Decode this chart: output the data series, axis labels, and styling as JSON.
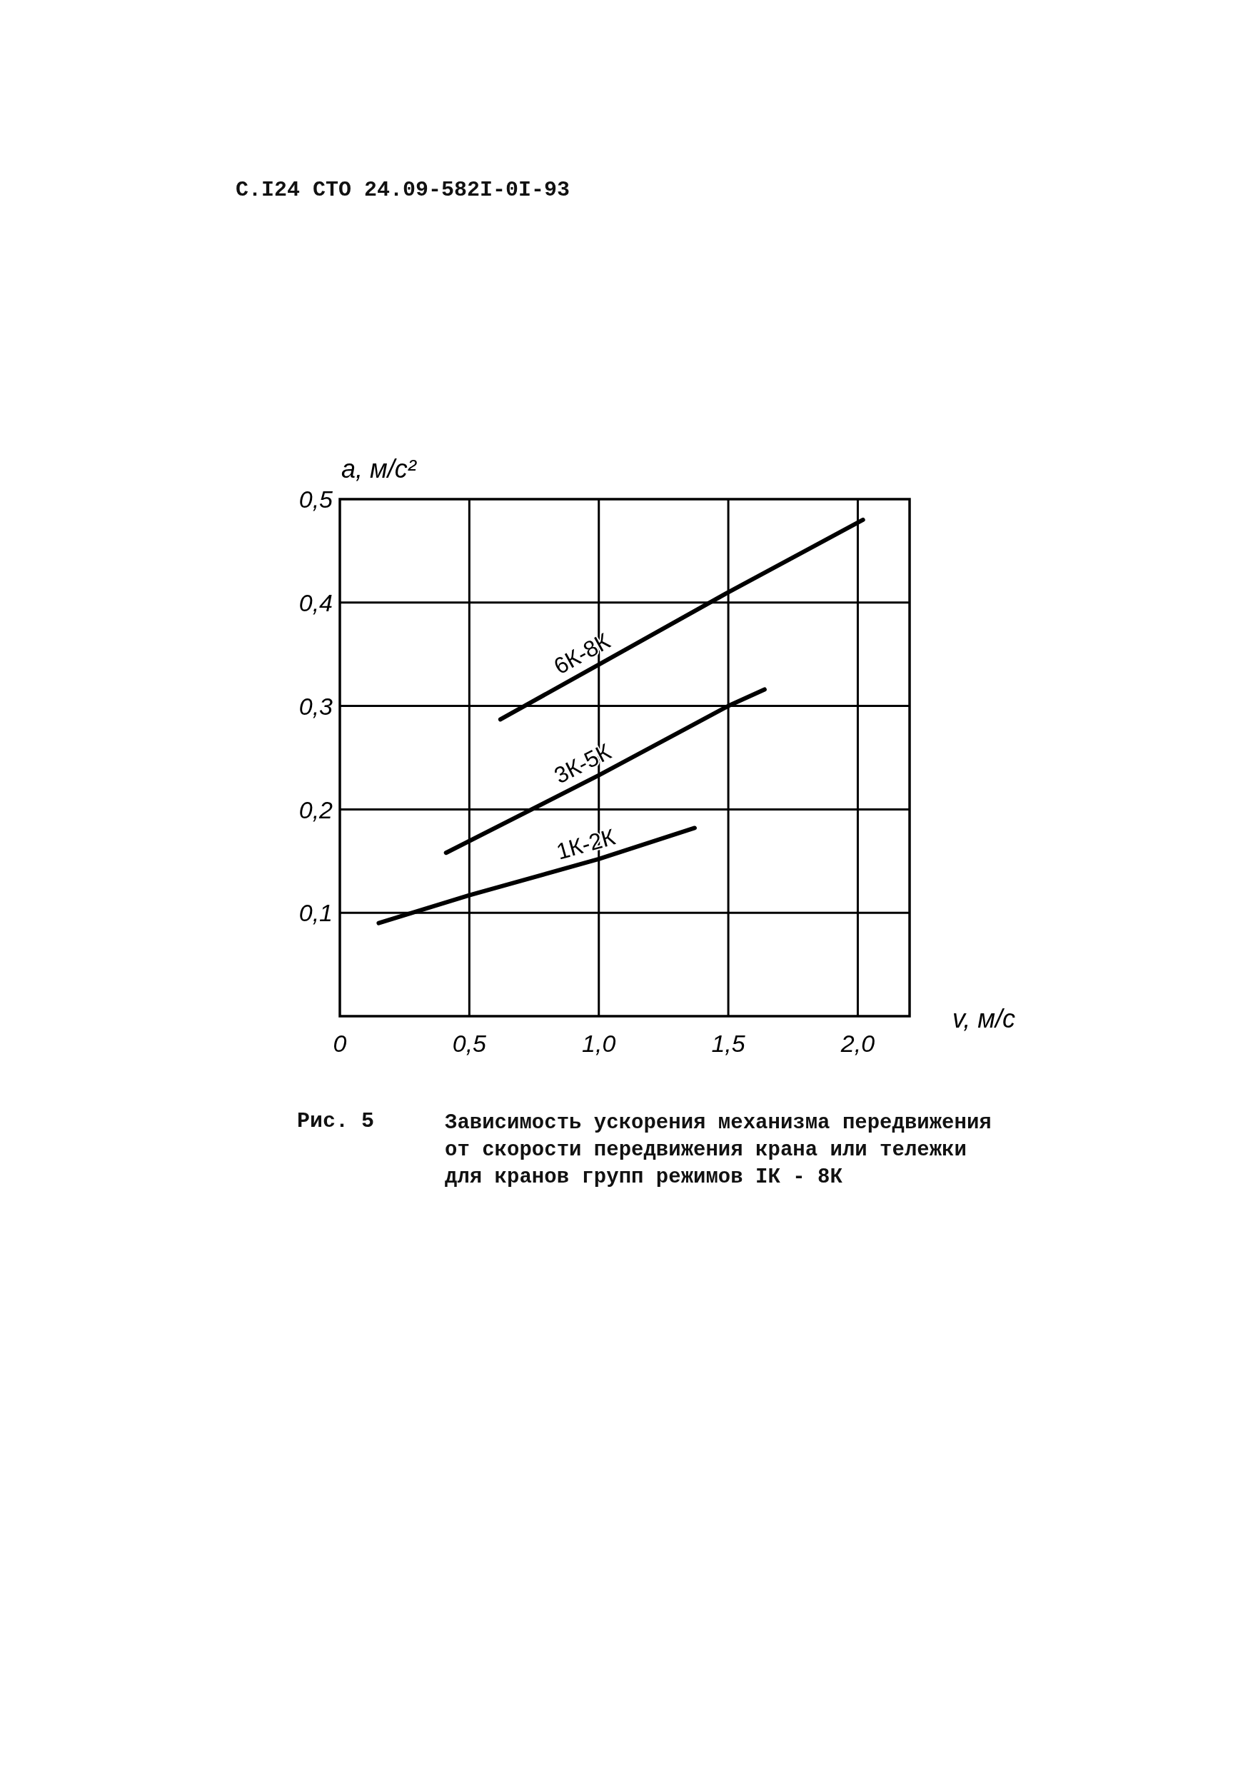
{
  "chart_data": {
    "type": "line",
    "xlabel": "v, м/с",
    "ylabel": "a, м/с²",
    "annotations": [
      "С.I24 СТО 24.09-582I-0I-93",
      "Рис. 5",
      "Зависимость ускорения механизма передвижения\nот скорости передвижения крана или тележки\nдля кранов групп режимов IК - 8К"
    ],
    "xlim": [
      0,
      2.2
    ],
    "ylim": [
      0,
      0.5
    ],
    "xticks": [
      0,
      {
        "value": 0.5,
        "label": "0,5"
      },
      {
        "value": 1,
        "label": "1,0"
      },
      {
        "value": 1.5,
        "label": "1,5"
      },
      {
        "value": 2,
        "label": "2,0"
      }
    ],
    "yticks": [
      {
        "value": 0.1,
        "label": "0,1"
      },
      {
        "value": 0.2,
        "label": "0,2"
      },
      {
        "value": 0.3,
        "label": "0,3"
      },
      {
        "value": 0.4,
        "label": "0,4"
      },
      {
        "value": 0.5,
        "label": "0,5"
      }
    ],
    "grid": true,
    "series": [
      {
        "name": "1К-2К",
        "color": "#000000",
        "x": [
          0.15,
          0.5,
          1.0,
          1.37
        ],
        "values": [
          0.09,
          0.117,
          0.152,
          0.182
        ]
      },
      {
        "name": "3К-5К",
        "color": "#000000",
        "x": [
          0.41,
          1.0,
          1.5,
          1.64
        ],
        "values": [
          0.158,
          0.233,
          0.3,
          0.316
        ]
      },
      {
        "name": "6К-8К",
        "color": "#000000",
        "x": [
          0.62,
          1.0,
          1.5,
          2.02
        ],
        "values": [
          0.287,
          0.34,
          0.41,
          0.48
        ]
      }
    ]
  }
}
